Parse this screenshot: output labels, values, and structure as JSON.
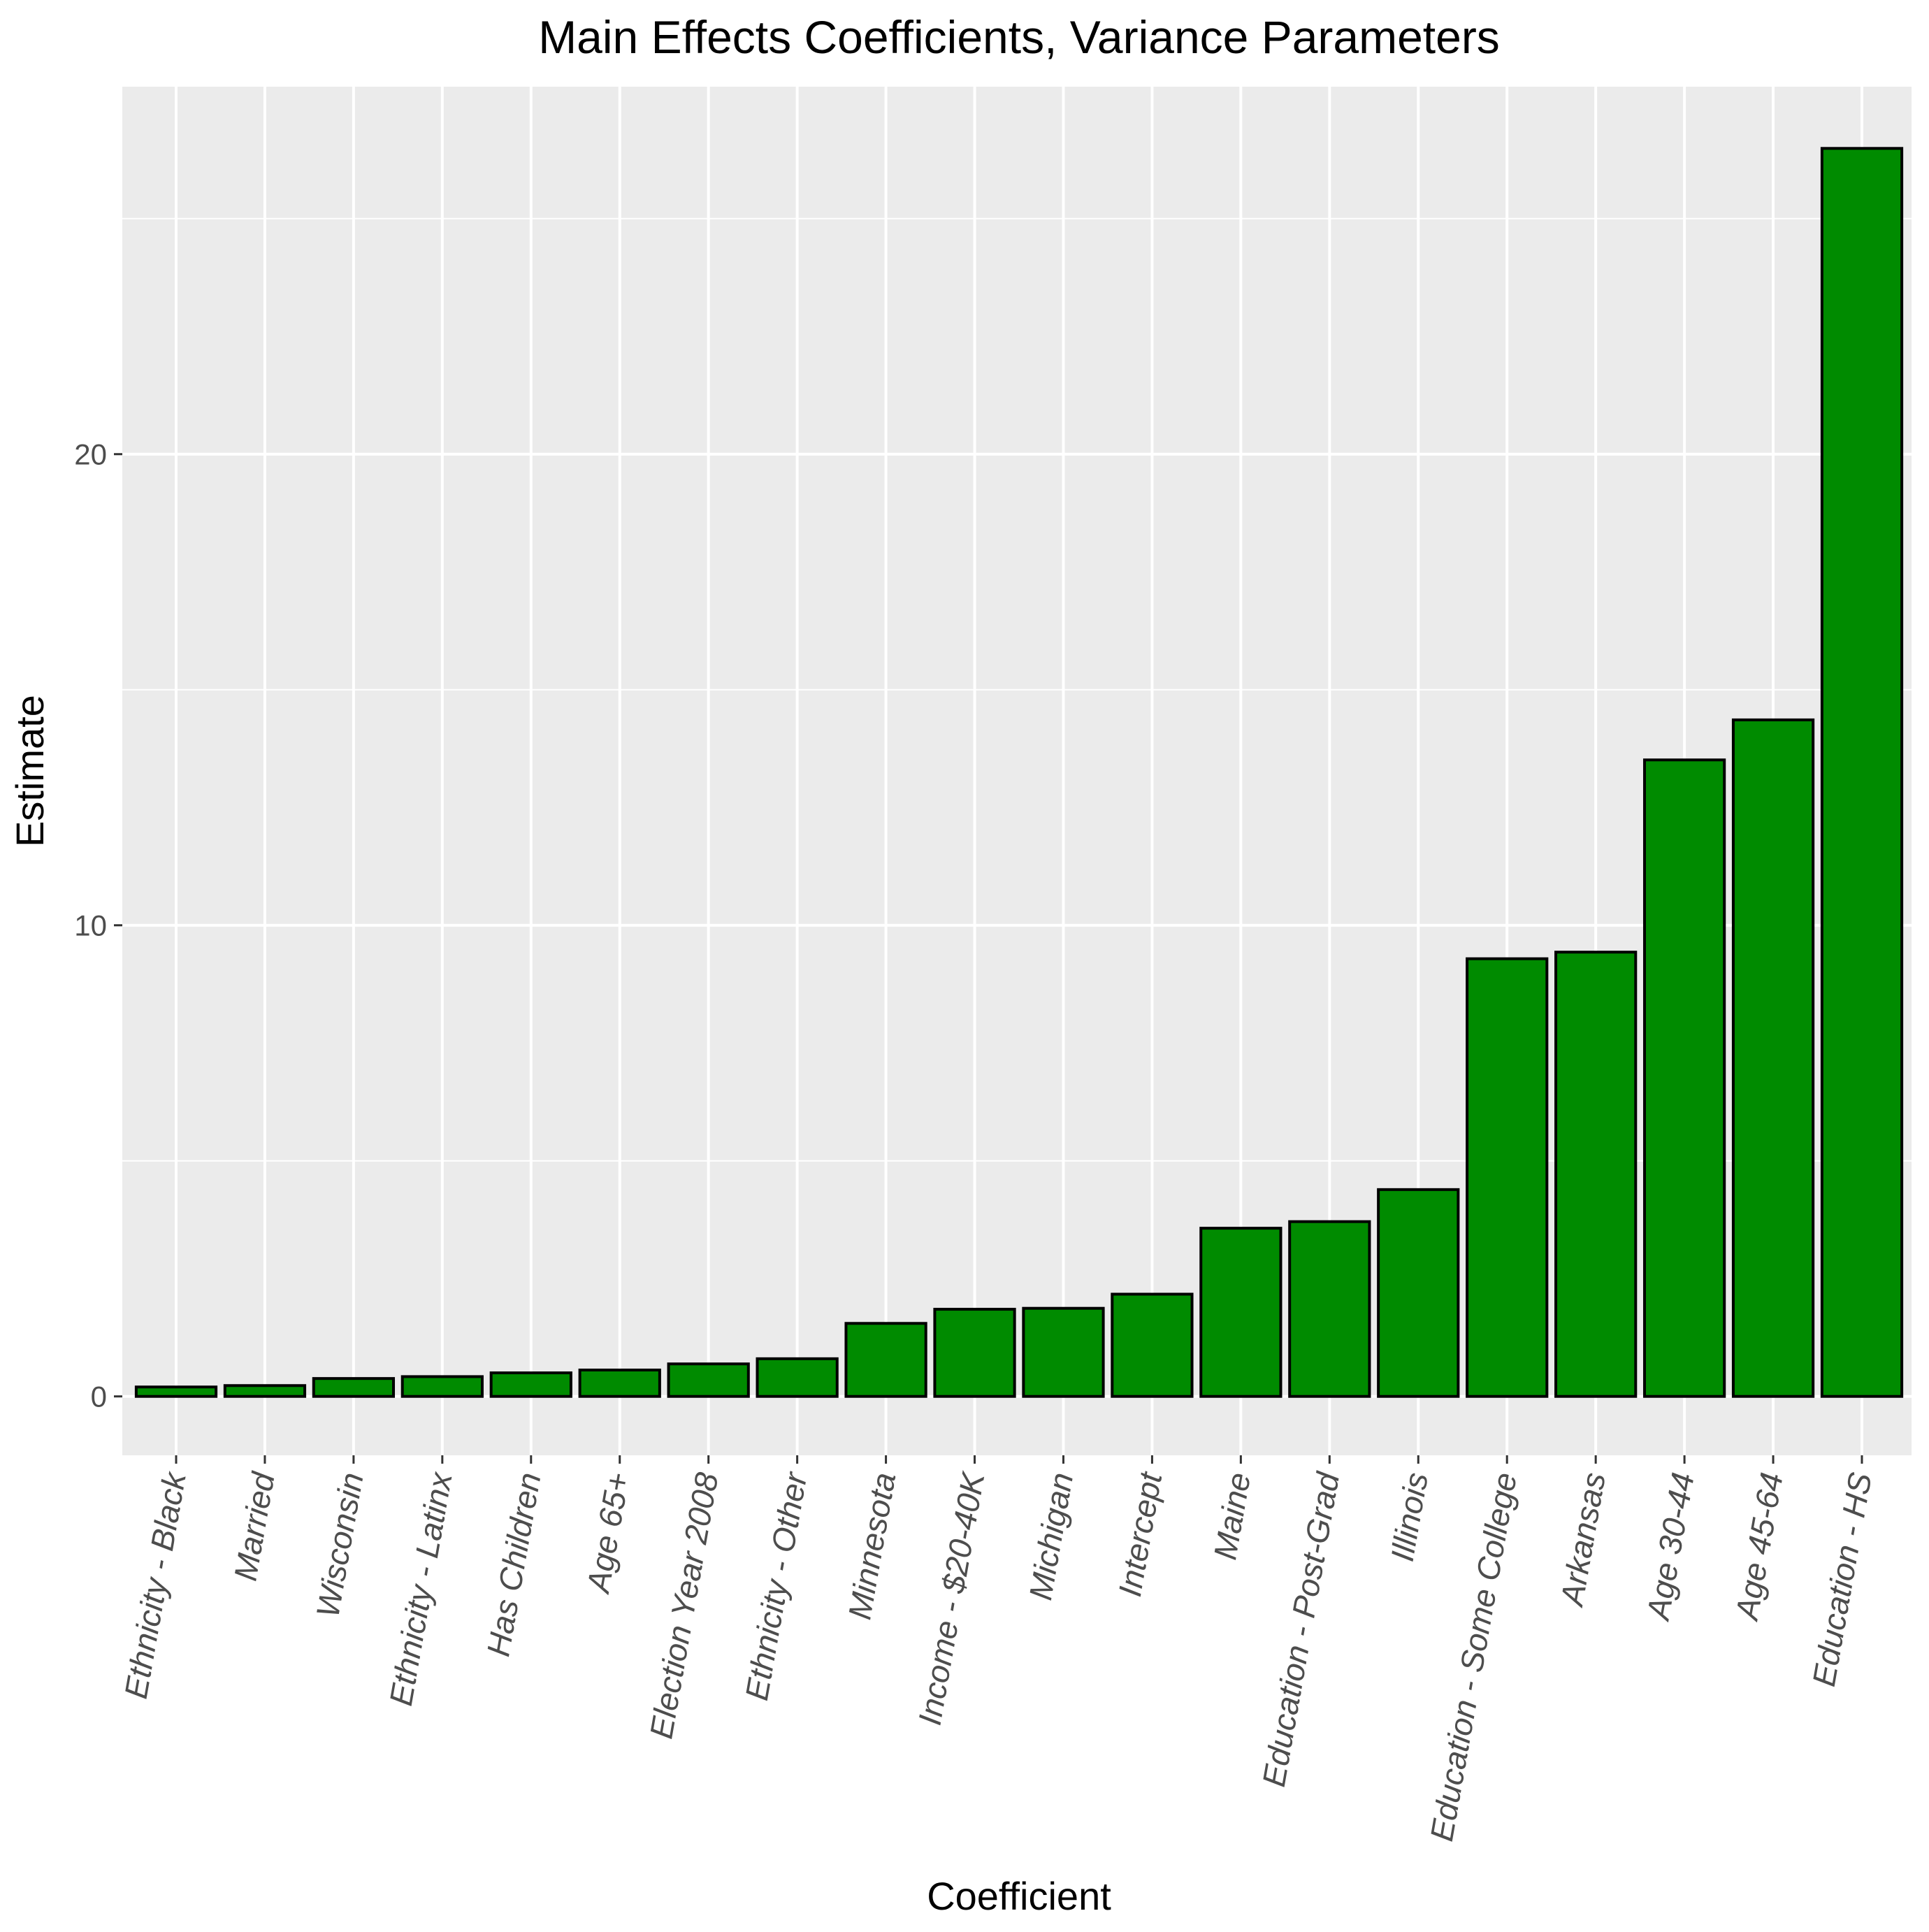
{
  "chart_data": {
    "type": "bar",
    "title": "Main Effects Coefficients, Variance Parameters",
    "xlabel": "Coefficient",
    "ylabel": "Estimate",
    "ylim": [
      -1.25,
      27.8
    ],
    "y_ticks": [
      0,
      10,
      20
    ],
    "y_minor_ticks": [
      5,
      15,
      25
    ],
    "grid": true,
    "categories": [
      "Ethnicity - Black",
      "Married",
      "Wisconsin",
      "Ethnicity - Latinx",
      "Has Children",
      "Age 65+",
      "Election Year 2008",
      "Ethnicity - Other",
      "Minnesota",
      "Income - $20-40K",
      "Michigan",
      "Intercept",
      "Maine",
      "Education - Post-Grad",
      "Illinois",
      "Education - Some College",
      "Arkansas",
      "Age 30-44",
      "Age 45-64",
      "Education - HS"
    ],
    "values": [
      0.2,
      0.23,
      0.38,
      0.42,
      0.5,
      0.56,
      0.69,
      0.8,
      1.55,
      1.85,
      1.87,
      2.17,
      3.57,
      3.71,
      4.39,
      9.29,
      9.43,
      13.51,
      14.36,
      26.49
    ],
    "bar_color": "#008B00",
    "bar_outline": "#000000",
    "panel_color": "#EBEBEB",
    "grid_color": "#FFFFFF"
  }
}
